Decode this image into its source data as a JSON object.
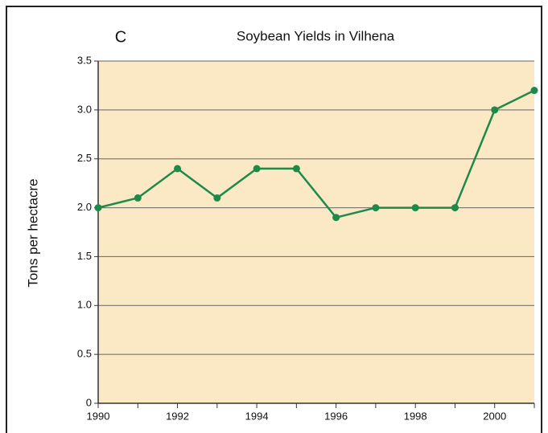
{
  "chart_data": {
    "type": "line",
    "panel_label": "C",
    "title": "Soybean Yields in Vilhena",
    "y_label": "Tons per hectacre",
    "x": [
      1990,
      1991,
      1992,
      1993,
      1994,
      1995,
      1996,
      1997,
      1998,
      1999,
      2000,
      2001
    ],
    "series": [
      {
        "name": "Soybean yield",
        "color": "#1e8a4a",
        "values": [
          2.0,
          2.1,
          2.4,
          2.1,
          2.4,
          2.4,
          1.9,
          2.0,
          2.0,
          2.0,
          3.0,
          3.2
        ]
      }
    ],
    "xlim": [
      1990,
      2001
    ],
    "xticks": [
      1990,
      1992,
      1994,
      1996,
      1998,
      2000
    ],
    "x_minor_ticks": [
      1991,
      1993,
      1995,
      1997,
      1999,
      2001
    ],
    "ylim": [
      0,
      3.5
    ],
    "yticks": [
      0,
      0.5,
      {
        "value": 1,
        "label": "1.0"
      },
      1.5,
      {
        "value": 2,
        "label": "2.0"
      },
      2.5,
      {
        "value": 3,
        "label": "3.0"
      },
      3.5
    ],
    "grid": true,
    "plot_background": "#fbe9c6"
  }
}
